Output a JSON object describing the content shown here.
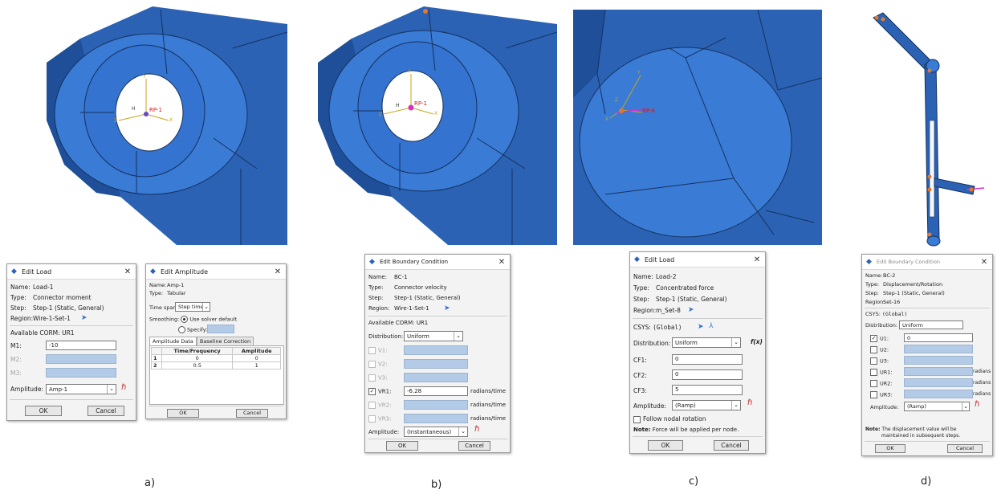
{
  "views": {
    "a": {
      "rp_label": "RP-1",
      "h_label": "H",
      "axis_labels": [
        "Y",
        "X",
        "Z"
      ]
    },
    "b": {
      "rp_label": "RP-1",
      "h_label": "H",
      "axis_labels": [
        "Y",
        "X",
        "Z"
      ]
    },
    "c": {
      "rp_label": "RP-8",
      "axis_labels": [
        "Y",
        "X",
        "Z"
      ]
    }
  },
  "captions": {
    "a": "a)",
    "b": "b)",
    "c": "c)",
    "d": "d)"
  },
  "dlg_a1": {
    "title": "Edit Load",
    "name_label": "Name:",
    "name": "Load-1",
    "type_label": "Type:",
    "type": "Connector moment",
    "step_label": "Step:",
    "step": "Step-1 (Static, General)",
    "region_label": "Region:",
    "region": "Wire-1-Set-1",
    "corm_label": "Available CORM:",
    "corm": "UR1",
    "m1_label": "M1:",
    "m1": "-10",
    "m2_label": "M2:",
    "m3_label": "M3:",
    "amplitude_label": "Amplitude:",
    "amplitude": "Amp-1",
    "ok": "OK",
    "cancel": "Cancel"
  },
  "dlg_a2": {
    "title": "Edit Amplitude",
    "name_label": "Name:",
    "name": "Amp-1",
    "type_label": "Type:",
    "type": "Tabular",
    "timespan_label": "Time span:",
    "timespan": "Step time",
    "smoothing_label": "Smoothing:",
    "use_default": "Use solver default",
    "specify": "Specify:",
    "tab_data": "Amplitude Data",
    "tab_baseline": "Baseline Correction",
    "col_time": "Time/Frequency",
    "col_amp": "Amplitude",
    "rows": [
      [
        "1",
        "0",
        "0"
      ],
      [
        "2",
        "0.5",
        "1"
      ]
    ],
    "ok": "OK",
    "cancel": "Cancel"
  },
  "dlg_b": {
    "title": "Edit Boundary Condition",
    "name_label": "Name:",
    "name": "BC-1",
    "type_label": "Type:",
    "type": "Connector velocity",
    "step_label": "Step:",
    "step": "Step-1 (Static, General)",
    "region_label": "Region:",
    "region": "Wire-1-Set-1",
    "corm_label": "Available CORM:",
    "corm": "UR1",
    "distribution_label": "Distribution:",
    "distribution": "Uniform",
    "v1": "V1:",
    "v2": "V2:",
    "v3": "V3:",
    "vr1": "VR1:",
    "vr1_value": "-6.28",
    "vr2": "VR2:",
    "vr3": "VR3:",
    "unit": "radians/time",
    "amplitude_label": "Amplitude:",
    "amplitude": "(Instantaneous)",
    "ok": "OK",
    "cancel": "Cancel"
  },
  "dlg_c": {
    "title": "Edit Load",
    "name_label": "Name:",
    "name": "Load-2",
    "type_label": "Type:",
    "type": "Concentrated force",
    "step_label": "Step:",
    "step": "Step-1 (Static, General)",
    "region_label": "Region:",
    "region": "m_Set-8",
    "csys_label": "CSYS:",
    "csys": "(Global)",
    "distribution_label": "Distribution:",
    "distribution": "Uniform",
    "fx": "f(x)",
    "cf1": "CF1:",
    "cf1_value": "0",
    "cf2": "CF2:",
    "cf2_value": "0",
    "cf3": "CF3:",
    "cf3_value": "5",
    "amplitude_label": "Amplitude:",
    "amplitude": "(Ramp)",
    "follow": "Follow nodal rotation",
    "note_label": "Note:",
    "note": "Force will be applied per node.",
    "ok": "OK",
    "cancel": "Cancel"
  },
  "dlg_d": {
    "title": "Edit Boundary Condition",
    "name_label": "Name:",
    "name": "BC-2",
    "type_label": "Type:",
    "type": "Displacement/Rotation",
    "step_label": "Step:",
    "step": "Step-1 (Static, General)",
    "region_label": "Region:",
    "region": "Set-16",
    "csys_label": "CSYS:",
    "csys": "(Global)",
    "distribution_label": "Distribution:",
    "distribution": "Uniform",
    "u1": "U1:",
    "u1_value": "0",
    "u2": "U2:",
    "u3": "U3:",
    "ur1": "UR1:",
    "ur2": "UR2:",
    "ur3": "UR3:",
    "unit": "radians",
    "amplitude_label": "Amplitude:",
    "amplitude": "(Ramp)",
    "note_label": "Note:",
    "note1": "The displacement value will be",
    "note2": "maintained in subsequent steps.",
    "ok": "OK",
    "cancel": "Cancel"
  }
}
